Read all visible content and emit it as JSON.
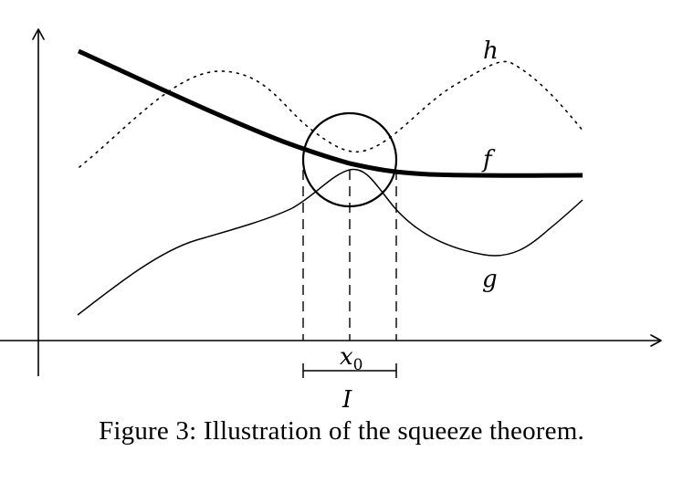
{
  "figure": {
    "labels": {
      "h": "h",
      "f": "f",
      "g": "g",
      "x0_base": "x",
      "x0_sub": "0",
      "interval": "I"
    },
    "caption": "Figure 3: Illustration of the squeeze theorem."
  }
}
